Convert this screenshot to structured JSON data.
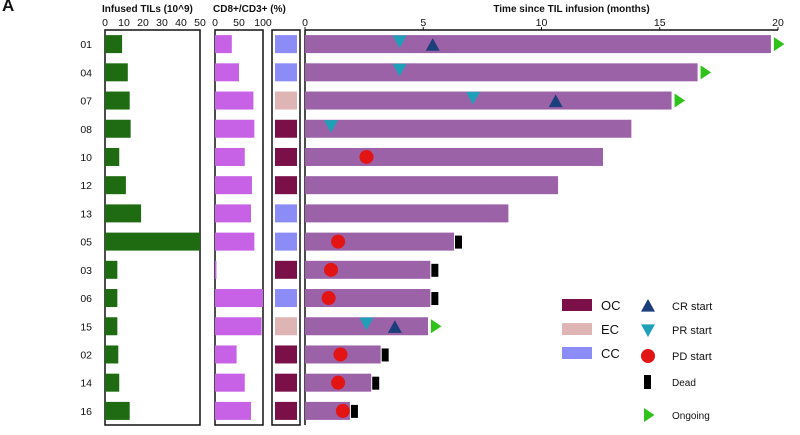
{
  "panel_letter": "A",
  "chart_data": {
    "type": "bar",
    "patients": [
      "01",
      "04",
      "07",
      "08",
      "10",
      "12",
      "13",
      "05",
      "03",
      "06",
      "15",
      "02",
      "14",
      "16"
    ],
    "infused_tils": {
      "xlabel": "Infused TILs (10^9)",
      "xlim": [
        0,
        50
      ],
      "ticks": [
        0,
        10,
        20,
        30,
        40,
        50
      ],
      "color": "#1e6b12",
      "values": [
        9,
        12,
        13,
        13.5,
        7.5,
        11,
        19,
        50,
        6.5,
        6.5,
        6.5,
        7,
        7.5,
        13
      ]
    },
    "cd8_cd3": {
      "xlabel": "CD8+/CD3+ (%)",
      "xlim": [
        0,
        100
      ],
      "ticks": [
        0,
        50,
        100
      ],
      "color": "#c762e6",
      "values": [
        35,
        50,
        80,
        82,
        62,
        77,
        75,
        82,
        3,
        100,
        97,
        45,
        62,
        75
      ]
    },
    "cancer_type": {
      "values": [
        "CC",
        "CC",
        "EC",
        "OC",
        "OC",
        "OC",
        "CC",
        "CC",
        "OC",
        "CC",
        "EC",
        "OC",
        "OC",
        "OC"
      ],
      "legend": [
        {
          "code": "OC",
          "color": "#7a1047"
        },
        {
          "code": "EC",
          "color": "#deb4b4"
        },
        {
          "code": "CC",
          "color": "#8c8cf6"
        }
      ]
    },
    "timeline": {
      "xlabel": "Time since TIL infusion (months)",
      "xlim": [
        0,
        20
      ],
      "ticks": [
        0,
        5,
        10,
        15,
        20
      ],
      "bar_color": "#9b62a8",
      "durations": [
        19.7,
        16.6,
        15.5,
        13.8,
        12.6,
        10.7,
        8.6,
        6.3,
        5.3,
        5.3,
        5.2,
        3.2,
        2.8,
        1.9
      ],
      "cr_start": [
        [
          5.4
        ],
        [],
        [
          10.6
        ],
        [],
        [],
        [],
        [],
        [],
        [],
        [],
        [
          3.8
        ],
        [],
        [],
        []
      ],
      "pr_start": [
        [
          4.0
        ],
        [
          4.0
        ],
        [
          7.1
        ],
        [
          1.1
        ],
        [],
        [],
        [],
        [],
        [],
        [],
        [
          2.6
        ],
        [],
        [],
        []
      ],
      "pd_start": [
        [],
        [],
        [],
        [],
        [
          2.6
        ],
        [],
        [],
        [
          1.4
        ],
        [
          1.1
        ],
        [
          1.0
        ],
        [],
        [
          1.5
        ],
        [
          1.4
        ],
        [
          1.6
        ]
      ],
      "dead": [
        false,
        false,
        false,
        false,
        false,
        false,
        false,
        true,
        true,
        true,
        false,
        true,
        true,
        true
      ],
      "ongoing": [
        true,
        true,
        true,
        false,
        false,
        false,
        false,
        false,
        false,
        false,
        true,
        false,
        false,
        false
      ]
    },
    "event_legend": [
      {
        "key": "cr",
        "label": "CR start",
        "color": "#1a3f7a"
      },
      {
        "key": "pr",
        "label": "PR start",
        "color": "#1fa0b8"
      },
      {
        "key": "pd",
        "label": "PD start",
        "color": "#e31414"
      },
      {
        "key": "dead",
        "label": "Dead",
        "color": "#000000"
      },
      {
        "key": "ongoing",
        "label": "Ongoing",
        "color": "#2ec21a"
      }
    ]
  }
}
